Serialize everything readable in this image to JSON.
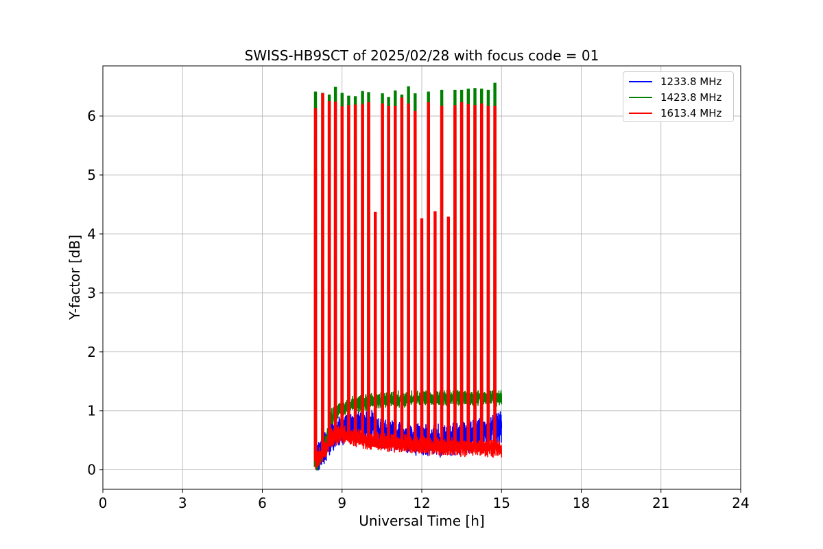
{
  "chart_data": {
    "type": "line",
    "title": "SWISS-HB9SCT of 2025/02/28 with focus code = 01",
    "xlabel": "Universal Time [h]",
    "ylabel": "Y-factor [dB]",
    "xlim": [
      0,
      24
    ],
    "ylim": [
      -0.33,
      6.85
    ],
    "xticks": [
      0,
      3,
      6,
      9,
      12,
      15,
      18,
      21,
      24
    ],
    "yticks": [
      0,
      1,
      2,
      3,
      4,
      5,
      6
    ],
    "grid": true,
    "legend_position": "top-right",
    "data_span_hours": [
      8.0,
      15.0
    ],
    "series": [
      {
        "name": "1233.8 MHz",
        "color": "#0000ff",
        "baseline_x": [
          8.0,
          8.3,
          8.6,
          9.0,
          9.5,
          10.0,
          10.5,
          11.0,
          11.5,
          12.0,
          12.5,
          13.0,
          13.5,
          14.0,
          14.5,
          15.0
        ],
        "baseline_y": [
          0.15,
          0.35,
          0.55,
          0.7,
          0.75,
          0.75,
          0.65,
          0.6,
          0.55,
          0.5,
          0.5,
          0.5,
          0.55,
          0.6,
          0.65,
          0.75
        ],
        "noise_amplitude": 0.18
      },
      {
        "name": "1423.8 MHz",
        "color": "#008000",
        "baseline_x": [
          8.0,
          8.3,
          8.6,
          9.0,
          9.5,
          10.0,
          10.5,
          11.0,
          11.5,
          12.0,
          12.5,
          13.0,
          13.5,
          14.0,
          14.5,
          15.0
        ],
        "baseline_y": [
          0.05,
          0.3,
          0.9,
          1.05,
          1.12,
          1.15,
          1.18,
          1.2,
          1.2,
          1.22,
          1.22,
          1.22,
          1.22,
          1.22,
          1.22,
          1.22
        ],
        "noise_amplitude": 0.09,
        "spikes": [
          {
            "x": 8.0,
            "y": 6.4
          },
          {
            "x": 8.27,
            "y": 6.38
          },
          {
            "x": 8.52,
            "y": 6.35
          },
          {
            "x": 8.75,
            "y": 6.48
          },
          {
            "x": 9.0,
            "y": 6.38
          },
          {
            "x": 9.25,
            "y": 6.33
          },
          {
            "x": 9.5,
            "y": 6.32
          },
          {
            "x": 9.77,
            "y": 6.41
          },
          {
            "x": 10.0,
            "y": 6.39
          },
          {
            "x": 10.52,
            "y": 6.37
          },
          {
            "x": 10.75,
            "y": 6.31
          },
          {
            "x": 11.0,
            "y": 6.42
          },
          {
            "x": 11.25,
            "y": 6.35
          },
          {
            "x": 11.5,
            "y": 6.49
          },
          {
            "x": 11.75,
            "y": 6.37
          },
          {
            "x": 12.25,
            "y": 6.4
          },
          {
            "x": 12.75,
            "y": 6.43
          },
          {
            "x": 13.25,
            "y": 6.43
          },
          {
            "x": 13.5,
            "y": 6.43
          },
          {
            "x": 13.75,
            "y": 6.45
          },
          {
            "x": 14.0,
            "y": 6.46
          },
          {
            "x": 14.25,
            "y": 6.45
          },
          {
            "x": 14.5,
            "y": 6.43
          },
          {
            "x": 14.75,
            "y": 6.55
          }
        ]
      },
      {
        "name": "1613.4 MHz",
        "color": "#ff0000",
        "baseline_x": [
          8.0,
          8.3,
          8.6,
          9.0,
          9.5,
          10.0,
          10.5,
          11.0,
          11.5,
          12.0,
          12.5,
          13.0,
          13.5,
          14.0,
          14.5,
          15.0
        ],
        "baseline_y": [
          0.15,
          0.3,
          0.55,
          0.6,
          0.55,
          0.5,
          0.48,
          0.45,
          0.44,
          0.42,
          0.4,
          0.4,
          0.38,
          0.38,
          0.38,
          0.35
        ],
        "noise_amplitude": 0.1,
        "spikes": [
          {
            "x": 8.0,
            "y": 6.12
          },
          {
            "x": 8.27,
            "y": 6.37
          },
          {
            "x": 8.52,
            "y": 6.24
          },
          {
            "x": 8.75,
            "y": 6.23
          },
          {
            "x": 9.0,
            "y": 6.15
          },
          {
            "x": 9.25,
            "y": 6.17
          },
          {
            "x": 9.5,
            "y": 6.18
          },
          {
            "x": 9.77,
            "y": 6.19
          },
          {
            "x": 10.0,
            "y": 6.22
          },
          {
            "x": 10.25,
            "y": 4.36
          },
          {
            "x": 10.52,
            "y": 6.2
          },
          {
            "x": 10.75,
            "y": 6.16
          },
          {
            "x": 11.0,
            "y": 6.16
          },
          {
            "x": 11.25,
            "y": 6.3
          },
          {
            "x": 11.5,
            "y": 6.2
          },
          {
            "x": 11.75,
            "y": 6.07
          },
          {
            "x": 12.0,
            "y": 4.25
          },
          {
            "x": 12.25,
            "y": 6.22
          },
          {
            "x": 12.5,
            "y": 4.37
          },
          {
            "x": 12.75,
            "y": 6.16
          },
          {
            "x": 13.0,
            "y": 4.28
          },
          {
            "x": 13.25,
            "y": 6.17
          },
          {
            "x": 13.5,
            "y": 6.22
          },
          {
            "x": 13.75,
            "y": 6.19
          },
          {
            "x": 14.0,
            "y": 6.17
          },
          {
            "x": 14.25,
            "y": 6.2
          },
          {
            "x": 14.5,
            "y": 6.16
          },
          {
            "x": 14.75,
            "y": 6.16
          }
        ]
      }
    ]
  }
}
